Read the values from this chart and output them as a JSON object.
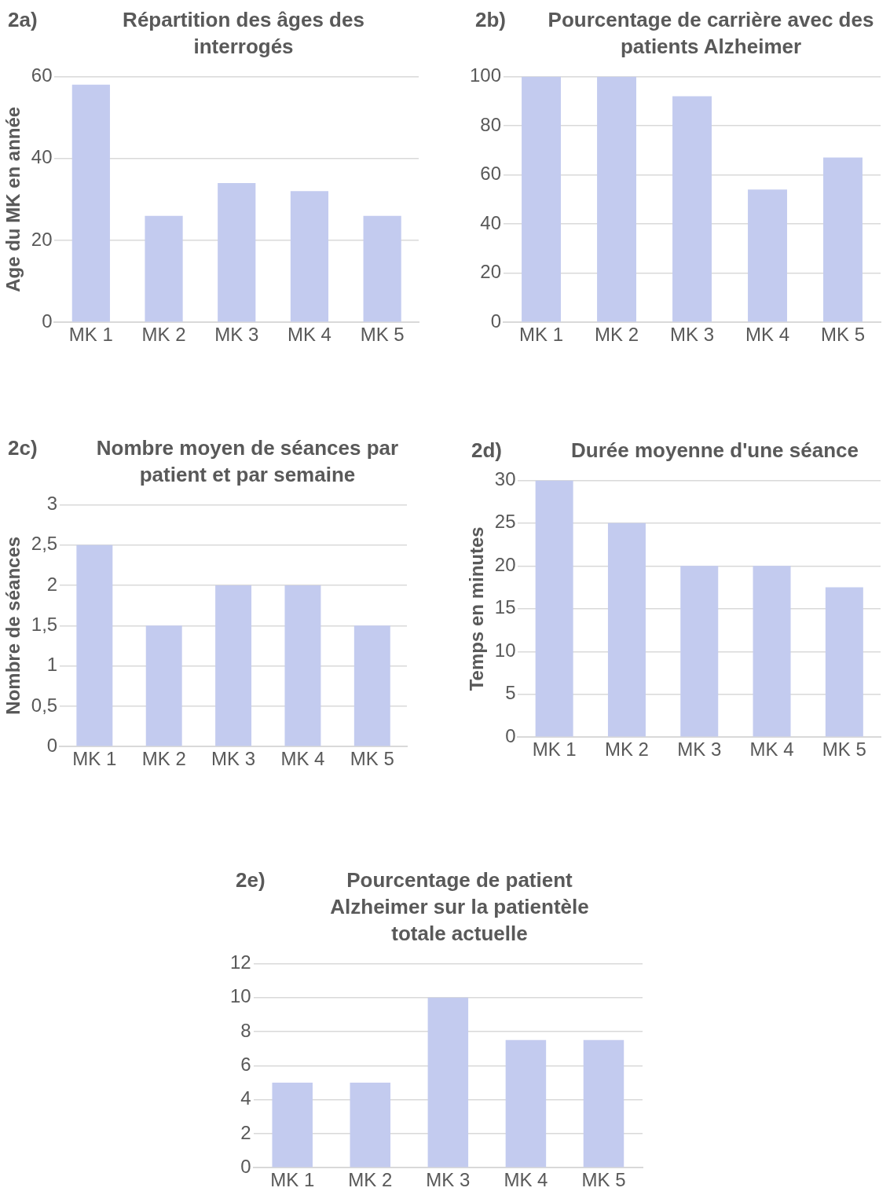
{
  "chart_data": [
    {
      "type": "bar",
      "title": "Répartition des âges des interrogés",
      "annotations": [
        "2a)"
      ],
      "ylabel": "Age du MK en année",
      "categories": [
        "MK 1",
        "MK 2",
        "MK 3",
        "MK 4",
        "MK 5"
      ],
      "values": [
        58,
        26,
        34,
        32,
        26
      ],
      "color": "#c3cbef",
      "ylim": [
        0,
        60
      ],
      "yticks": [
        0,
        20,
        40,
        60
      ],
      "grid": "y"
    },
    {
      "type": "bar",
      "title": "Pourcentage de carrière avec des patients Alzheimer",
      "annotations": [
        "2b)"
      ],
      "categories": [
        "MK 1",
        "MK 2",
        "MK 3",
        "MK 4",
        "MK 5"
      ],
      "values": [
        100,
        100,
        92,
        54,
        67
      ],
      "color": "#c3cbef",
      "ylim": [
        0,
        100
      ],
      "yticks": [
        0,
        20,
        40,
        60,
        80,
        100
      ],
      "grid": "y"
    },
    {
      "type": "bar",
      "title": "Nombre moyen de séances par patient et par semaine",
      "annotations": [
        "2c)"
      ],
      "ylabel": "Nombre de séances",
      "categories": [
        "MK 1",
        "MK 2",
        "MK 3",
        "MK 4",
        "MK 5"
      ],
      "values": [
        2.5,
        1.5,
        2,
        2,
        1.5
      ],
      "color": "#c3cbef",
      "ylim": [
        0,
        3
      ],
      "yticks": [
        0,
        {
          "value": 0.5,
          "label": "0,5"
        },
        1,
        {
          "value": 1.5,
          "label": "1,5"
        },
        2,
        {
          "value": 2.5,
          "label": "2,5"
        },
        3
      ],
      "grid": "y"
    },
    {
      "type": "bar",
      "title": "Durée moyenne d'une séance",
      "annotations": [
        "2d)"
      ],
      "ylabel": "Temps en minutes",
      "categories": [
        "MK 1",
        "MK 2",
        "MK 3",
        "MK 4",
        "MK 5"
      ],
      "values": [
        30,
        25,
        20,
        20,
        17.5
      ],
      "color": "#c3cbef",
      "ylim": [
        0,
        30
      ],
      "yticks": [
        0,
        5,
        10,
        15,
        20,
        25,
        30
      ],
      "grid": "y"
    },
    {
      "type": "bar",
      "title": "Pourcentage de patient Alzheimer sur la patientèle totale actuelle",
      "annotations": [
        "2e)"
      ],
      "categories": [
        "MK 1",
        "MK 2",
        "MK 3",
        "MK 4",
        "MK 5"
      ],
      "values": [
        5,
        5,
        10,
        7.5,
        7.5
      ],
      "color": "#c3cbef",
      "ylim": [
        0,
        12
      ],
      "yticks": [
        0,
        2,
        4,
        6,
        8,
        10,
        12
      ],
      "grid": "y"
    }
  ]
}
